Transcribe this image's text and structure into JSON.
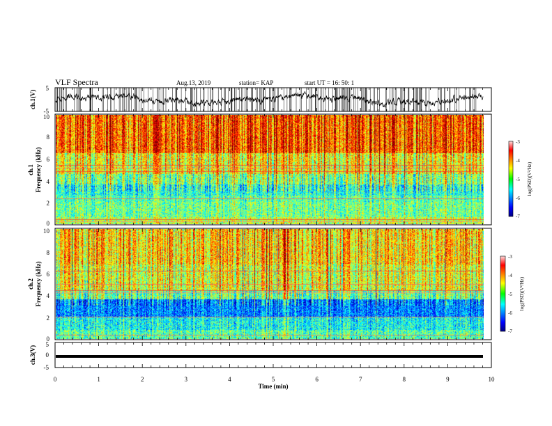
{
  "header": {
    "title": "VLF Spectra",
    "date": "Aug.13, 2019",
    "station": "station= KAP",
    "start": "start  UT =   16: 50: 1"
  },
  "chart_data": [
    {
      "type": "line",
      "panel": "ch1-waveform",
      "ylabel": "ch.1(V)",
      "ylim": [
        -5,
        5
      ],
      "yticks": [
        "5",
        "-5"
      ],
      "xlim": [
        0,
        10
      ]
    },
    {
      "type": "heatmap",
      "panel": "ch1-spectrogram",
      "ylabel_top": "ch.1",
      "ylabel": "Frequency (kHz)",
      "ylim": [
        0,
        10
      ],
      "yticks": [
        "0",
        "2",
        "4",
        "6",
        "8",
        "10"
      ],
      "xlim": [
        0,
        9.8
      ],
      "colorbar": {
        "label": "log(PSD)(V²/Hz)",
        "range": [
          -7,
          -3
        ],
        "ticks": [
          "-3",
          "-4",
          "-5",
          "-6",
          "-7"
        ]
      }
    },
    {
      "type": "heatmap",
      "panel": "ch2-spectrogram",
      "ylabel_top": "ch.2",
      "ylabel": "Frequency (kHz)",
      "ylim": [
        0,
        10
      ],
      "yticks": [
        "0",
        "2",
        "4",
        "6",
        "8",
        "10"
      ],
      "xlim": [
        0,
        9.8
      ],
      "colorbar": {
        "label": "log(PSD)(V²/Hz)",
        "range": [
          -7,
          -3
        ],
        "ticks": [
          "-3",
          "-4",
          "-5",
          "-6",
          "-7"
        ]
      }
    },
    {
      "type": "line",
      "panel": "ch3-waveform",
      "ylabel": "ch.3(V)",
      "ylim": [
        -5,
        5
      ],
      "yticks": [
        "5",
        "0",
        "-5"
      ],
      "x": [
        0,
        9.8
      ],
      "y": [
        -1.3,
        -1.3
      ],
      "xlabel": "Time (min)",
      "xticks": [
        "0",
        "1",
        "2",
        "3",
        "4",
        "5",
        "6",
        "7",
        "8",
        "9",
        "10"
      ],
      "xlim": [
        0,
        10
      ]
    }
  ],
  "colors": {
    "axis": "#000000",
    "trace": "#000000"
  }
}
